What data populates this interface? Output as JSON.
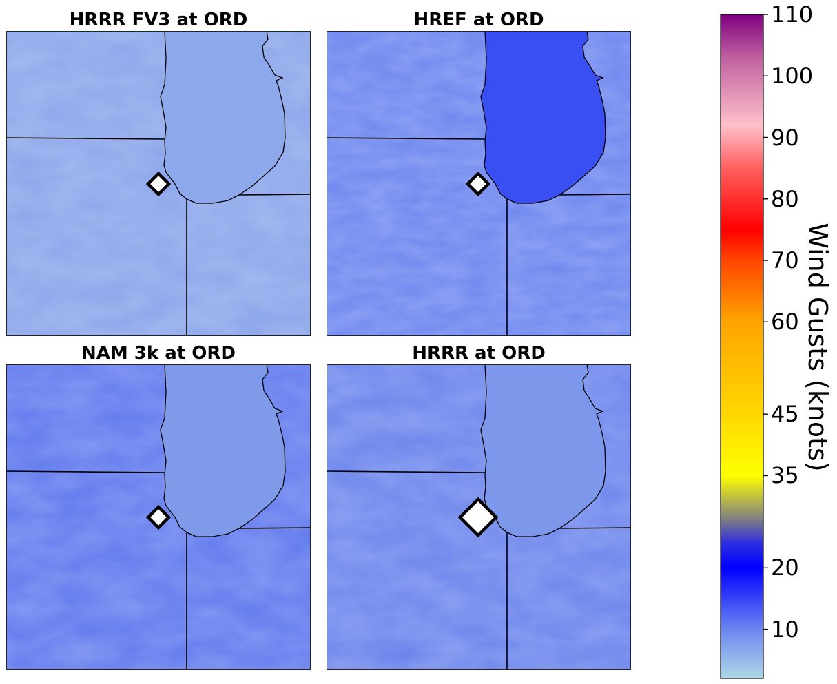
{
  "panels": [
    {
      "title": "HRRR FV3 at ORD",
      "base": "#8aa4ea",
      "lake": "#8ea8ec",
      "marker_scale": 1.0
    },
    {
      "title": "HREF at ORD",
      "base": "#6d85ef",
      "lake": "#3a4ff2",
      "marker_scale": 1.0
    },
    {
      "title": "NAM 3k at ORD",
      "base": "#5f78ee",
      "lake": "#7f9ae8",
      "marker_scale": 1.0
    },
    {
      "title": "HRRR at ORD",
      "base": "#6b83ec",
      "lake": "#7d97ea",
      "marker_scale": 1.75
    }
  ],
  "colorbar": {
    "label": "Wind Gusts (knots)",
    "range": [
      2,
      110
    ],
    "ticks": [
      "110",
      "100",
      "90",
      "80",
      "70",
      "60",
      "45",
      "35",
      "20",
      "10"
    ],
    "tick_values": [
      110,
      100,
      90,
      80,
      70,
      60,
      45,
      35,
      20,
      10
    ],
    "colors": [
      "#add8e6",
      "#6c86ef",
      "#0000ff",
      "#2d2de0",
      "#808080",
      "#ffff00",
      "#ffd700",
      "#ffa500",
      "#ff4500",
      "#ff0000",
      "#ff6060",
      "#ffc0cb",
      "#c060a0",
      "#800080"
    ]
  },
  "marker_icon": "diamond-marker-icon"
}
